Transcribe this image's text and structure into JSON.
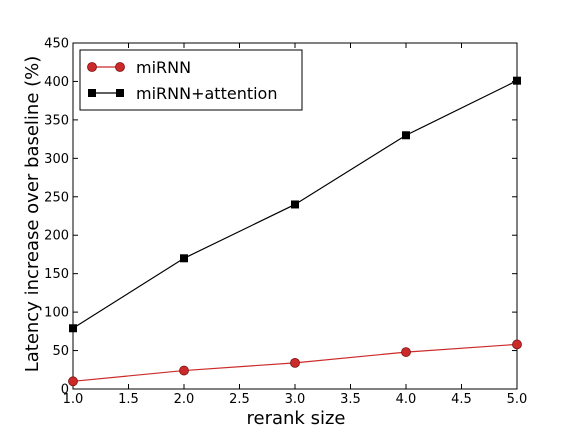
{
  "chart_data": {
    "type": "line",
    "title": "",
    "xlabel": "rerank size",
    "ylabel": "Latency increase over baseline (%)",
    "xlim": [
      1.0,
      5.0
    ],
    "ylim": [
      0,
      450
    ],
    "x_ticks": [
      "1.0",
      "1.5",
      "2.0",
      "2.5",
      "3.0",
      "3.5",
      "4.0",
      "4.5",
      "5.0"
    ],
    "y_ticks": [
      "0",
      "50",
      "100",
      "150",
      "200",
      "250",
      "300",
      "350",
      "400",
      "450"
    ],
    "grid": false,
    "legend_position": "top-left",
    "series": [
      {
        "name": "miRNN",
        "color": "#cc2a2a",
        "marker": "circle",
        "x": [
          1,
          2,
          3,
          4,
          5
        ],
        "values": [
          10,
          24,
          34,
          48,
          58
        ]
      },
      {
        "name": "miRNN+attention",
        "color": "#000000",
        "marker": "square",
        "x": [
          1,
          2,
          3,
          4,
          5
        ],
        "values": [
          79,
          170,
          240,
          330,
          401
        ]
      }
    ]
  }
}
